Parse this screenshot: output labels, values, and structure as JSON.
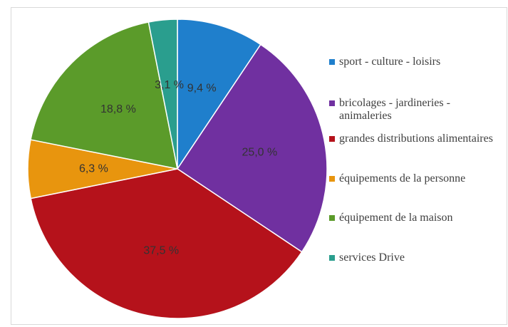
{
  "chart_data": {
    "type": "pie",
    "categories": [
      "sport - culture - loisirs",
      "bricolages - jardineries - animaleries",
      "grandes distributions alimentaires",
      "équipements de la personne",
      "équipement de la maison",
      "services Drive"
    ],
    "values": [
      9.4,
      25.0,
      37.5,
      6.3,
      18.8,
      3.1
    ],
    "value_labels": [
      "9,4 %",
      "25,0 %",
      "37,5 %",
      "6,3 %",
      "18,8 %",
      "3,1 %"
    ],
    "colors": [
      "#1f7fcc",
      "#7030a0",
      "#b5121b",
      "#e8950e",
      "#5b9b2a",
      "#2a9e8e"
    ],
    "legend": "right"
  }
}
